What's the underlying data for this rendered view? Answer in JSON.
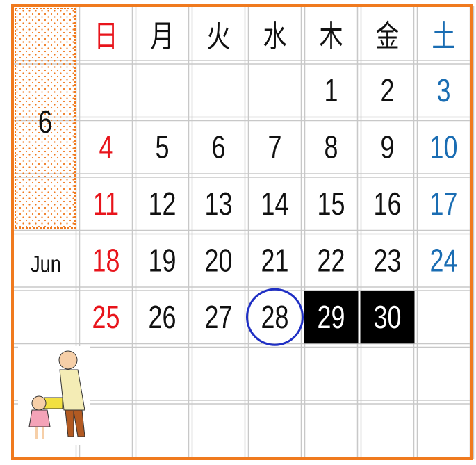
{
  "calendar": {
    "month": "6",
    "month_name": "Jun",
    "weekdays": [
      "日",
      "月",
      "火",
      "水",
      "木",
      "金",
      "土"
    ],
    "weeks": [
      [
        null,
        null,
        null,
        null,
        1,
        2,
        3
      ],
      [
        4,
        5,
        6,
        7,
        8,
        9,
        10
      ],
      [
        11,
        12,
        13,
        14,
        15,
        16,
        17
      ],
      [
        18,
        19,
        20,
        21,
        22,
        23,
        24
      ],
      [
        25,
        26,
        27,
        {
          "day": 28,
          "style": "circled"
        },
        {
          "day": 29,
          "style": "inverted"
        },
        {
          "day": 30,
          "style": "inverted"
        },
        null
      ],
      [
        null,
        null,
        null,
        null,
        null,
        null,
        null
      ],
      [
        null,
        null,
        null,
        null,
        null,
        null,
        null
      ]
    ],
    "colors": {
      "sunday": "#e8141b",
      "saturday": "#1a6db3",
      "weekday": "#111111",
      "border": "#f07a1e",
      "circle": "#1f2fc4"
    }
  }
}
